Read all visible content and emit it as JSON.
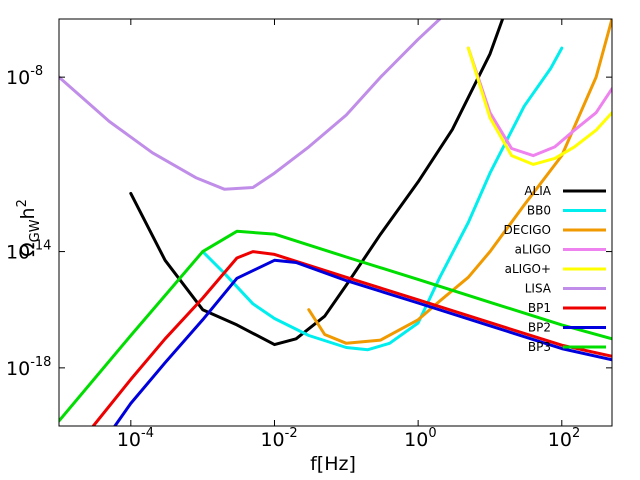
{
  "chart_data": {
    "type": "line",
    "title": "",
    "xlabel": "f[Hz]",
    "ylabel": {
      "main": "Ω",
      "sub": "GW",
      "tail": "h",
      "sup": "2"
    },
    "x_scale": "log",
    "y_scale": "log",
    "xlim": [
      1e-05,
      500
    ],
    "ylim": [
      1e-20,
      1e-06
    ],
    "x_ticks": [
      {
        "base": "10",
        "exp": "-4",
        "value": 0.0001
      },
      {
        "base": "10",
        "exp": "-2",
        "value": 0.01
      },
      {
        "base": "10",
        "exp": "0",
        "value": 1
      },
      {
        "base": "10",
        "exp": "2",
        "value": 100
      }
    ],
    "y_ticks": [
      {
        "base": "10",
        "exp": "-8",
        "value": 1e-08
      },
      {
        "base": "10",
        "exp": "-14",
        "value": 1e-14
      },
      {
        "base": "10",
        "exp": "-18",
        "value": 1e-18
      }
    ],
    "legend_position": "right",
    "grid": false,
    "series": [
      {
        "name": "ALIA",
        "color": "#000000",
        "points": [
          [
            0.0001,
            1e-12
          ],
          [
            0.0003,
            5e-15
          ],
          [
            0.001,
            1e-16
          ],
          [
            0.003,
            3e-17
          ],
          [
            0.01,
            6.3e-18
          ],
          [
            0.02,
            1e-17
          ],
          [
            0.05,
            6e-17
          ],
          [
            0.1,
            7e-16
          ],
          [
            0.3,
            4e-14
          ],
          [
            1,
            2.5e-12
          ],
          [
            3,
            1.6e-10
          ],
          [
            10,
            6.3e-08
          ],
          [
            15,
            1e-06
          ]
        ]
      },
      {
        "name": "BB0",
        "color": "#00eeee",
        "points": [
          [
            0.001,
            1e-14
          ],
          [
            0.002,
            1.8e-15
          ],
          [
            0.005,
            1.6e-16
          ],
          [
            0.01,
            5e-17
          ],
          [
            0.03,
            1.3e-17
          ],
          [
            0.1,
            5e-18
          ],
          [
            0.2,
            4.2e-18
          ],
          [
            0.4,
            7e-18
          ],
          [
            1,
            3.5e-17
          ],
          [
            2,
            1.3e-15
          ],
          [
            5,
            1e-13
          ],
          [
            10,
            5e-12
          ],
          [
            30,
            1e-09
          ],
          [
            70,
            2e-08
          ],
          [
            100,
            1e-07
          ]
        ]
      },
      {
        "name": "DECIGO",
        "color": "#f09a00",
        "points": [
          [
            0.03,
            1e-16
          ],
          [
            0.05,
            1.4e-17
          ],
          [
            0.1,
            7e-18
          ],
          [
            0.3,
            9e-18
          ],
          [
            1,
            4.5e-17
          ],
          [
            2,
            2e-16
          ],
          [
            5,
            1.3e-15
          ],
          [
            10,
            1e-14
          ],
          [
            30,
            4e-13
          ],
          [
            100,
            2e-11
          ],
          [
            300,
            1e-08
          ],
          [
            500,
            1e-06
          ]
        ]
      },
      {
        "name": "aLIGO",
        "color": "#ee82ee",
        "points": [
          [
            5,
            1e-07
          ],
          [
            10,
            6e-10
          ],
          [
            20,
            3.5e-11
          ],
          [
            40,
            2e-11
          ],
          [
            80,
            4e-11
          ],
          [
            150,
            1.5e-10
          ],
          [
            300,
            6e-10
          ],
          [
            500,
            4e-09
          ]
        ]
      },
      {
        "name": "aLIGO+",
        "color": "#ffff00",
        "points": [
          [
            5,
            1e-07
          ],
          [
            10,
            4e-10
          ],
          [
            20,
            2e-11
          ],
          [
            40,
            1e-11
          ],
          [
            80,
            1.6e-11
          ],
          [
            150,
            4e-11
          ],
          [
            300,
            1.5e-10
          ],
          [
            500,
            6e-10
          ]
        ]
      },
      {
        "name": "LISA",
        "color": "#c08ee8",
        "points": [
          [
            1e-05,
            1e-08
          ],
          [
            5e-05,
            3e-10
          ],
          [
            0.0002,
            2.5e-11
          ],
          [
            0.0008,
            3.5e-12
          ],
          [
            0.002,
            1.4e-12
          ],
          [
            0.005,
            1.6e-12
          ],
          [
            0.01,
            5e-12
          ],
          [
            0.03,
            4e-11
          ],
          [
            0.1,
            5e-10
          ],
          [
            0.3,
            1e-08
          ],
          [
            1,
            2e-07
          ],
          [
            2,
            1e-06
          ]
        ]
      },
      {
        "name": "BP1",
        "color": "#ee0000",
        "points": [
          [
            3e-05,
            1e-20
          ],
          [
            0.0001,
            4e-19
          ],
          [
            0.0003,
            1e-17
          ],
          [
            0.001,
            2.5e-16
          ],
          [
            0.003,
            6e-15
          ],
          [
            0.005,
            1e-14
          ],
          [
            0.01,
            8e-15
          ],
          [
            0.1,
            1.3e-15
          ],
          [
            1,
            2.2e-16
          ],
          [
            10,
            3.6e-17
          ],
          [
            100,
            6e-18
          ],
          [
            500,
            2.5e-18
          ]
        ]
      },
      {
        "name": "BP2",
        "color": "#0000dd",
        "points": [
          [
            6e-05,
            1e-20
          ],
          [
            0.0001,
            6e-20
          ],
          [
            0.0003,
            1.5e-18
          ],
          [
            0.001,
            4.5e-17
          ],
          [
            0.003,
            1.2e-15
          ],
          [
            0.01,
            5e-15
          ],
          [
            0.02,
            4.2e-15
          ],
          [
            0.1,
            1e-15
          ],
          [
            1,
            1.7e-16
          ],
          [
            10,
            2.8e-17
          ],
          [
            100,
            4.6e-18
          ],
          [
            500,
            1.9e-18
          ]
        ]
      },
      {
        "name": "BP3",
        "color": "#00dd00",
        "points": [
          [
            1e-05,
            1.5e-20
          ],
          [
            0.0001,
            1.3e-17
          ],
          [
            0.001,
            1e-14
          ],
          [
            0.003,
            5e-14
          ],
          [
            0.01,
            4e-14
          ],
          [
            0.1,
            6.5e-15
          ],
          [
            1,
            1.1e-15
          ],
          [
            10,
            1.8e-16
          ],
          [
            100,
            3e-17
          ],
          [
            500,
            1e-17
          ]
        ]
      }
    ]
  }
}
